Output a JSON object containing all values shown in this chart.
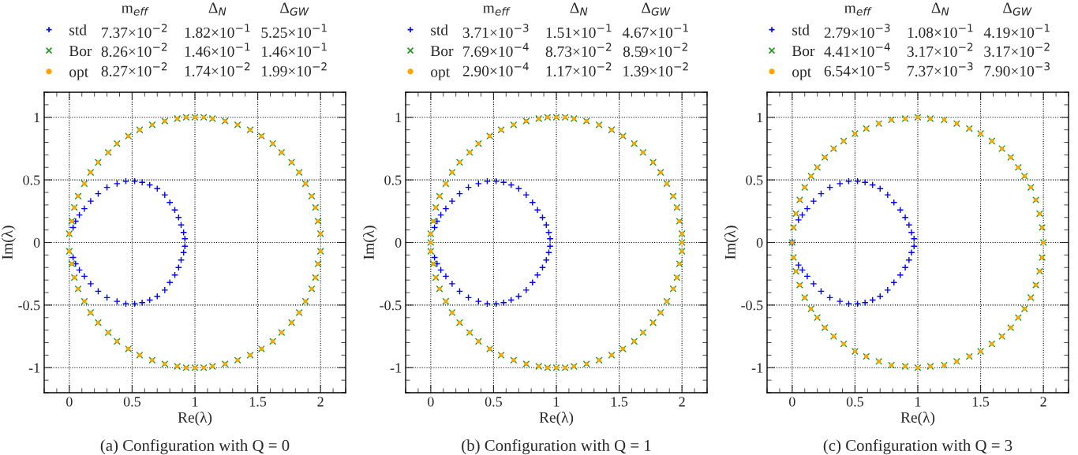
{
  "chart_data": [
    {
      "type": "scatter",
      "title": "(a) Configuration with Q = 0",
      "xlabel": "Re(λ)",
      "ylabel": "Im(λ)",
      "xlim": [
        -0.2,
        2.2
      ],
      "ylim": [
        -1.2,
        1.2
      ],
      "xticks": [
        0,
        0.5,
        1,
        1.5,
        2
      ],
      "yticks": [
        -1,
        -0.5,
        0,
        0.5,
        1
      ],
      "grid": true,
      "legend": "top left",
      "annotations": [
        "m$_{eff}$",
        "Δ$_{N}$",
        "Δ$_{GW}$",
        "7.37×10$^{−2}$",
        "1.82×10$^{−1}$",
        "5.25×10$^{−1}$",
        "8.26×10$^{−2}$",
        "1.46×10$^{−1}$",
        "1.46×10$^{−1}$",
        "8.27×10$^{−2}$",
        "1.74×10$^{−2}$",
        "1.99×10$^{−2}$"
      ],
      "series": [
        {
          "name": "std",
          "color": "#0000ff",
          "marker": "plus",
          "x": [
            0.03,
            0.05,
            0.08,
            0.12,
            0.17,
            0.23,
            0.3,
            0.38,
            0.45,
            0.52,
            0.58,
            0.64,
            0.7,
            0.76,
            0.8,
            0.84,
            0.87,
            0.89,
            0.91,
            0.92,
            0.92,
            0.91,
            0.89,
            0.87,
            0.84,
            0.8,
            0.76,
            0.7,
            0.64,
            0.58,
            0.52,
            0.45,
            0.38,
            0.3,
            0.23,
            0.17,
            0.12,
            0.08,
            0.05,
            0.03
          ],
          "values": [
            0.12,
            0.17,
            0.22,
            0.27,
            0.33,
            0.39,
            0.44,
            0.47,
            0.49,
            0.49,
            0.48,
            0.46,
            0.43,
            0.38,
            0.32,
            0.26,
            0.2,
            0.14,
            0.08,
            0.03,
            -0.03,
            -0.08,
            -0.14,
            -0.2,
            -0.26,
            -0.32,
            -0.38,
            -0.43,
            -0.46,
            -0.48,
            -0.49,
            -0.49,
            -0.47,
            -0.44,
            -0.39,
            -0.33,
            -0.27,
            -0.22,
            -0.17,
            -0.12
          ]
        },
        {
          "name": "Bor",
          "color": "#1f9a1f",
          "marker": "cross",
          "x": [
            2.0,
            1.98,
            1.96,
            1.93,
            1.88,
            1.83,
            1.77,
            1.69,
            1.62,
            1.53,
            1.44,
            1.34,
            1.24,
            1.14,
            1.07,
            1.0,
            0.93,
            0.86,
            0.76,
            0.66,
            0.56,
            0.47,
            0.38,
            0.31,
            0.23,
            0.17,
            0.12,
            0.07,
            0.04,
            0.02,
            0.0,
            2.0,
            1.98,
            1.96,
            1.93,
            1.88,
            1.83,
            1.77,
            1.69,
            1.62,
            1.53,
            1.44,
            1.34,
            1.24,
            1.14,
            1.07,
            1.0,
            0.93,
            0.86,
            0.76,
            0.66,
            0.56,
            0.47,
            0.38,
            0.31,
            0.23,
            0.17,
            0.12,
            0.07,
            0.04,
            0.02,
            0.0
          ],
          "values": [
            0.07,
            0.17,
            0.28,
            0.37,
            0.47,
            0.56,
            0.64,
            0.72,
            0.79,
            0.85,
            0.9,
            0.94,
            0.97,
            0.99,
            1.0,
            1.0,
            1.0,
            0.99,
            0.97,
            0.94,
            0.9,
            0.85,
            0.79,
            0.72,
            0.64,
            0.56,
            0.47,
            0.37,
            0.28,
            0.17,
            0.07,
            -0.07,
            -0.17,
            -0.28,
            -0.37,
            -0.47,
            -0.56,
            -0.64,
            -0.72,
            -0.79,
            -0.85,
            -0.9,
            -0.94,
            -0.97,
            -0.99,
            -1.0,
            -1.0,
            -1.0,
            -0.99,
            -0.97,
            -0.94,
            -0.9,
            -0.85,
            -0.79,
            -0.72,
            -0.64,
            -0.56,
            -0.47,
            -0.37,
            -0.28,
            -0.17,
            -0.07
          ]
        },
        {
          "name": "opt",
          "color": "#ffa500",
          "marker": "circle",
          "x": [
            2.0,
            1.98,
            1.96,
            1.93,
            1.88,
            1.83,
            1.77,
            1.69,
            1.62,
            1.53,
            1.44,
            1.34,
            1.24,
            1.14,
            1.07,
            1.0,
            0.93,
            0.86,
            0.76,
            0.66,
            0.56,
            0.47,
            0.38,
            0.31,
            0.23,
            0.17,
            0.12,
            0.07,
            0.04,
            0.02,
            0.0,
            2.0,
            1.98,
            1.96,
            1.93,
            1.88,
            1.83,
            1.77,
            1.69,
            1.62,
            1.53,
            1.44,
            1.34,
            1.24,
            1.14,
            1.07,
            1.0,
            0.93,
            0.86,
            0.76,
            0.66,
            0.56,
            0.47,
            0.38,
            0.31,
            0.23,
            0.17,
            0.12,
            0.07,
            0.04,
            0.02,
            0.0
          ],
          "values": [
            0.07,
            0.17,
            0.28,
            0.37,
            0.47,
            0.56,
            0.64,
            0.72,
            0.79,
            0.85,
            0.9,
            0.94,
            0.97,
            0.99,
            1.0,
            1.0,
            1.0,
            0.99,
            0.97,
            0.94,
            0.9,
            0.85,
            0.79,
            0.72,
            0.64,
            0.56,
            0.47,
            0.37,
            0.28,
            0.17,
            0.07,
            -0.07,
            -0.17,
            -0.28,
            -0.37,
            -0.47,
            -0.56,
            -0.64,
            -0.72,
            -0.79,
            -0.85,
            -0.9,
            -0.94,
            -0.97,
            -0.99,
            -1.0,
            -1.0,
            -1.0,
            -0.99,
            -0.97,
            -0.94,
            -0.9,
            -0.85,
            -0.79,
            -0.72,
            -0.64,
            -0.56,
            -0.47,
            -0.37,
            -0.28,
            -0.17,
            -0.07
          ]
        }
      ]
    },
    {
      "type": "scatter",
      "title": "(b) Configuration with Q = 1",
      "xlabel": "Re(λ)",
      "ylabel": "Im(λ)",
      "xlim": [
        -0.2,
        2.2
      ],
      "ylim": [
        -1.2,
        1.2
      ],
      "xticks": [
        0,
        0.5,
        1,
        1.5,
        2
      ],
      "yticks": [
        -1,
        -0.5,
        0,
        0.5,
        1
      ],
      "grid": true,
      "legend": "top left",
      "annotations": [
        "m$_{eff}$",
        "Δ$_{N}$",
        "Δ$_{GW}$",
        "3.71×10$^{−3}$",
        "1.51×10$^{−1}$",
        "4.67×10$^{−1}$",
        "7.69×10$^{−4}$",
        "8.73×10$^{−2}$",
        "8.59×10$^{−2}$",
        "2.90×10$^{−4}$",
        "1.17×10$^{−2}$",
        "1.39×10$^{−2}$"
      ],
      "series": [
        {
          "name": "std",
          "color": "#0000ff",
          "marker": "plus",
          "x": [
            0.03,
            0.05,
            0.08,
            0.12,
            0.17,
            0.23,
            0.3,
            0.38,
            0.45,
            0.52,
            0.58,
            0.64,
            0.7,
            0.76,
            0.81,
            0.85,
            0.89,
            0.92,
            0.94,
            0.95,
            0.95,
            0.94,
            0.92,
            0.89,
            0.85,
            0.81,
            0.76,
            0.7,
            0.64,
            0.58,
            0.52,
            0.45,
            0.38,
            0.3,
            0.23,
            0.17,
            0.12,
            0.08,
            0.05,
            0.03
          ],
          "values": [
            0.12,
            0.17,
            0.22,
            0.27,
            0.33,
            0.39,
            0.44,
            0.47,
            0.49,
            0.49,
            0.48,
            0.46,
            0.43,
            0.38,
            0.32,
            0.26,
            0.2,
            0.14,
            0.08,
            0.03,
            -0.03,
            -0.08,
            -0.14,
            -0.2,
            -0.26,
            -0.32,
            -0.38,
            -0.43,
            -0.46,
            -0.48,
            -0.49,
            -0.49,
            -0.47,
            -0.44,
            -0.39,
            -0.33,
            -0.27,
            -0.22,
            -0.17,
            -0.12
          ]
        },
        {
          "name": "Bor",
          "color": "#1f9a1f",
          "marker": "cross",
          "x": [
            2.0,
            2.0,
            1.98,
            1.96,
            1.93,
            1.88,
            1.83,
            1.77,
            1.69,
            1.62,
            1.53,
            1.44,
            1.34,
            1.24,
            1.14,
            1.07,
            1.0,
            0.93,
            0.86,
            0.76,
            0.66,
            0.56,
            0.47,
            0.38,
            0.31,
            0.23,
            0.17,
            0.12,
            0.07,
            0.04,
            0.02,
            0.0,
            0.0,
            2.0,
            1.98,
            1.96,
            1.93,
            1.88,
            1.83,
            1.77,
            1.69,
            1.62,
            1.53,
            1.44,
            1.34,
            1.24,
            1.14,
            1.07,
            1.0,
            0.93,
            0.86,
            0.76,
            0.66,
            0.56,
            0.47,
            0.38,
            0.31,
            0.23,
            0.17,
            0.12,
            0.07,
            0.04,
            0.02,
            0.0
          ],
          "values": [
            0.0,
            0.07,
            0.17,
            0.28,
            0.37,
            0.47,
            0.56,
            0.64,
            0.72,
            0.79,
            0.85,
            0.9,
            0.94,
            0.97,
            0.99,
            1.0,
            1.0,
            1.0,
            0.99,
            0.97,
            0.94,
            0.9,
            0.85,
            0.79,
            0.72,
            0.64,
            0.56,
            0.47,
            0.37,
            0.28,
            0.17,
            0.07,
            0.0,
            -0.07,
            -0.17,
            -0.28,
            -0.37,
            -0.47,
            -0.56,
            -0.64,
            -0.72,
            -0.79,
            -0.85,
            -0.9,
            -0.94,
            -0.97,
            -0.99,
            -1.0,
            -1.0,
            -1.0,
            -0.99,
            -0.97,
            -0.94,
            -0.9,
            -0.85,
            -0.79,
            -0.72,
            -0.64,
            -0.56,
            -0.47,
            -0.37,
            -0.28,
            -0.17,
            -0.07
          ]
        },
        {
          "name": "opt",
          "color": "#ffa500",
          "marker": "circle",
          "x": [
            2.0,
            2.0,
            1.98,
            1.96,
            1.93,
            1.88,
            1.83,
            1.77,
            1.69,
            1.62,
            1.53,
            1.44,
            1.34,
            1.24,
            1.14,
            1.07,
            1.0,
            0.93,
            0.86,
            0.76,
            0.66,
            0.56,
            0.47,
            0.38,
            0.31,
            0.23,
            0.17,
            0.12,
            0.07,
            0.04,
            0.02,
            0.0,
            0.0,
            2.0,
            1.98,
            1.96,
            1.93,
            1.88,
            1.83,
            1.77,
            1.69,
            1.62,
            1.53,
            1.44,
            1.34,
            1.24,
            1.14,
            1.07,
            1.0,
            0.93,
            0.86,
            0.76,
            0.66,
            0.56,
            0.47,
            0.38,
            0.31,
            0.23,
            0.17,
            0.12,
            0.07,
            0.04,
            0.02,
            0.0
          ],
          "values": [
            0.0,
            0.07,
            0.17,
            0.28,
            0.37,
            0.47,
            0.56,
            0.64,
            0.72,
            0.79,
            0.85,
            0.9,
            0.94,
            0.97,
            0.99,
            1.0,
            1.0,
            1.0,
            0.99,
            0.97,
            0.94,
            0.9,
            0.85,
            0.79,
            0.72,
            0.64,
            0.56,
            0.47,
            0.37,
            0.28,
            0.17,
            0.07,
            0.0,
            -0.07,
            -0.17,
            -0.28,
            -0.37,
            -0.47,
            -0.56,
            -0.64,
            -0.72,
            -0.79,
            -0.85,
            -0.9,
            -0.94,
            -0.97,
            -0.99,
            -1.0,
            -1.0,
            -1.0,
            -0.99,
            -0.97,
            -0.94,
            -0.9,
            -0.85,
            -0.79,
            -0.72,
            -0.64,
            -0.56,
            -0.47,
            -0.37,
            -0.28,
            -0.17,
            -0.07
          ]
        }
      ]
    },
    {
      "type": "scatter",
      "title": "(c) Configuration with Q = 3",
      "xlabel": "Re(λ)",
      "ylabel": "Im(λ)",
      "xlim": [
        -0.2,
        2.2
      ],
      "ylim": [
        -1.2,
        1.2
      ],
      "xticks": [
        0,
        0.5,
        1,
        1.5,
        2
      ],
      "yticks": [
        -1,
        -0.5,
        0,
        0.5,
        1
      ],
      "grid": true,
      "legend": "top left",
      "annotations": [
        "m$_{eff}$",
        "Δ$_{N}$",
        "Δ$_{GW}$",
        "2.79×10$^{−3}$",
        "1.08×10$^{−1}$",
        "4.19×10$^{−1}$",
        "4.41×10$^{−4}$",
        "3.17×10$^{−2}$",
        "3.17×10$^{−2}$",
        "6.54×10$^{−5}$",
        "7.37×10$^{−3}$",
        "7.90×10$^{−3}$"
      ],
      "series": [
        {
          "name": "std",
          "color": "#0000ff",
          "marker": "plus",
          "x": [
            0.0,
            0.05,
            0.08,
            0.12,
            0.17,
            0.23,
            0.3,
            0.38,
            0.45,
            0.52,
            0.58,
            0.64,
            0.7,
            0.76,
            0.81,
            0.86,
            0.9,
            0.93,
            0.95,
            0.97,
            0.97,
            0.95,
            0.93,
            0.9,
            0.86,
            0.81,
            0.76,
            0.7,
            0.64,
            0.58,
            0.52,
            0.45,
            0.38,
            0.3,
            0.23,
            0.17,
            0.12,
            0.08,
            0.05,
            0.0
          ],
          "values": [
            0.0,
            0.18,
            0.22,
            0.27,
            0.33,
            0.39,
            0.44,
            0.47,
            0.49,
            0.49,
            0.48,
            0.46,
            0.43,
            0.38,
            0.32,
            0.26,
            0.2,
            0.14,
            0.08,
            0.03,
            -0.03,
            -0.08,
            -0.14,
            -0.2,
            -0.26,
            -0.32,
            -0.38,
            -0.43,
            -0.46,
            -0.48,
            -0.49,
            -0.49,
            -0.47,
            -0.44,
            -0.39,
            -0.33,
            -0.27,
            -0.22,
            -0.18,
            0.0
          ]
        },
        {
          "name": "Bor",
          "color": "#1f9a1f",
          "marker": "cross",
          "x": [
            2.0,
            1.99,
            1.97,
            1.94,
            1.9,
            1.85,
            1.8,
            1.74,
            1.67,
            1.59,
            1.5,
            1.41,
            1.31,
            1.21,
            1.1,
            1.0,
            0.9,
            0.79,
            0.69,
            0.59,
            0.5,
            0.41,
            0.33,
            0.26,
            0.2,
            0.15,
            0.1,
            0.06,
            0.03,
            0.01,
            0.0,
            1.99,
            1.97,
            1.94,
            1.9,
            1.85,
            1.8,
            1.74,
            1.67,
            1.59,
            1.5,
            1.41,
            1.31,
            1.21,
            1.1,
            1.0,
            0.9,
            0.79,
            0.69,
            0.59,
            0.5,
            0.41,
            0.33,
            0.26,
            0.2,
            0.15,
            0.1,
            0.06,
            0.03,
            0.01
          ],
          "values": [
            0.0,
            0.12,
            0.23,
            0.34,
            0.44,
            0.53,
            0.6,
            0.68,
            0.75,
            0.81,
            0.87,
            0.91,
            0.95,
            0.98,
            0.99,
            1.0,
            0.99,
            0.98,
            0.95,
            0.91,
            0.87,
            0.81,
            0.75,
            0.68,
            0.6,
            0.53,
            0.44,
            0.34,
            0.23,
            0.12,
            0.0,
            -0.12,
            -0.23,
            -0.34,
            -0.44,
            -0.53,
            -0.6,
            -0.68,
            -0.75,
            -0.81,
            -0.87,
            -0.91,
            -0.95,
            -0.98,
            -0.99,
            -1.0,
            -0.99,
            -0.98,
            -0.95,
            -0.91,
            -0.87,
            -0.81,
            -0.75,
            -0.68,
            -0.6,
            -0.53,
            -0.44,
            -0.34,
            -0.23,
            -0.12
          ]
        },
        {
          "name": "opt",
          "color": "#ffa500",
          "marker": "circle",
          "x": [
            2.0,
            1.99,
            1.97,
            1.94,
            1.9,
            1.85,
            1.8,
            1.74,
            1.67,
            1.59,
            1.5,
            1.41,
            1.31,
            1.21,
            1.1,
            1.0,
            0.9,
            0.79,
            0.69,
            0.59,
            0.5,
            0.41,
            0.33,
            0.26,
            0.2,
            0.15,
            0.1,
            0.06,
            0.03,
            0.01,
            0.0,
            1.99,
            1.97,
            1.94,
            1.9,
            1.85,
            1.8,
            1.74,
            1.67,
            1.59,
            1.5,
            1.41,
            1.31,
            1.21,
            1.1,
            1.0,
            0.9,
            0.79,
            0.69,
            0.59,
            0.5,
            0.41,
            0.33,
            0.26,
            0.2,
            0.15,
            0.1,
            0.06,
            0.03,
            0.01
          ],
          "values": [
            0.0,
            0.12,
            0.23,
            0.34,
            0.44,
            0.53,
            0.6,
            0.68,
            0.75,
            0.81,
            0.87,
            0.91,
            0.95,
            0.98,
            0.99,
            1.0,
            0.99,
            0.98,
            0.95,
            0.91,
            0.87,
            0.81,
            0.75,
            0.68,
            0.6,
            0.53,
            0.44,
            0.34,
            0.23,
            0.12,
            0.0,
            -0.12,
            -0.23,
            -0.34,
            -0.44,
            -0.53,
            -0.6,
            -0.68,
            -0.75,
            -0.81,
            -0.87,
            -0.91,
            -0.95,
            -0.98,
            -0.99,
            -1.0,
            -0.99,
            -0.98,
            -0.95,
            -0.91,
            -0.87,
            -0.81,
            -0.75,
            -0.68,
            -0.6,
            -0.53,
            -0.44,
            -0.34,
            -0.23,
            -0.12
          ]
        }
      ]
    }
  ]
}
